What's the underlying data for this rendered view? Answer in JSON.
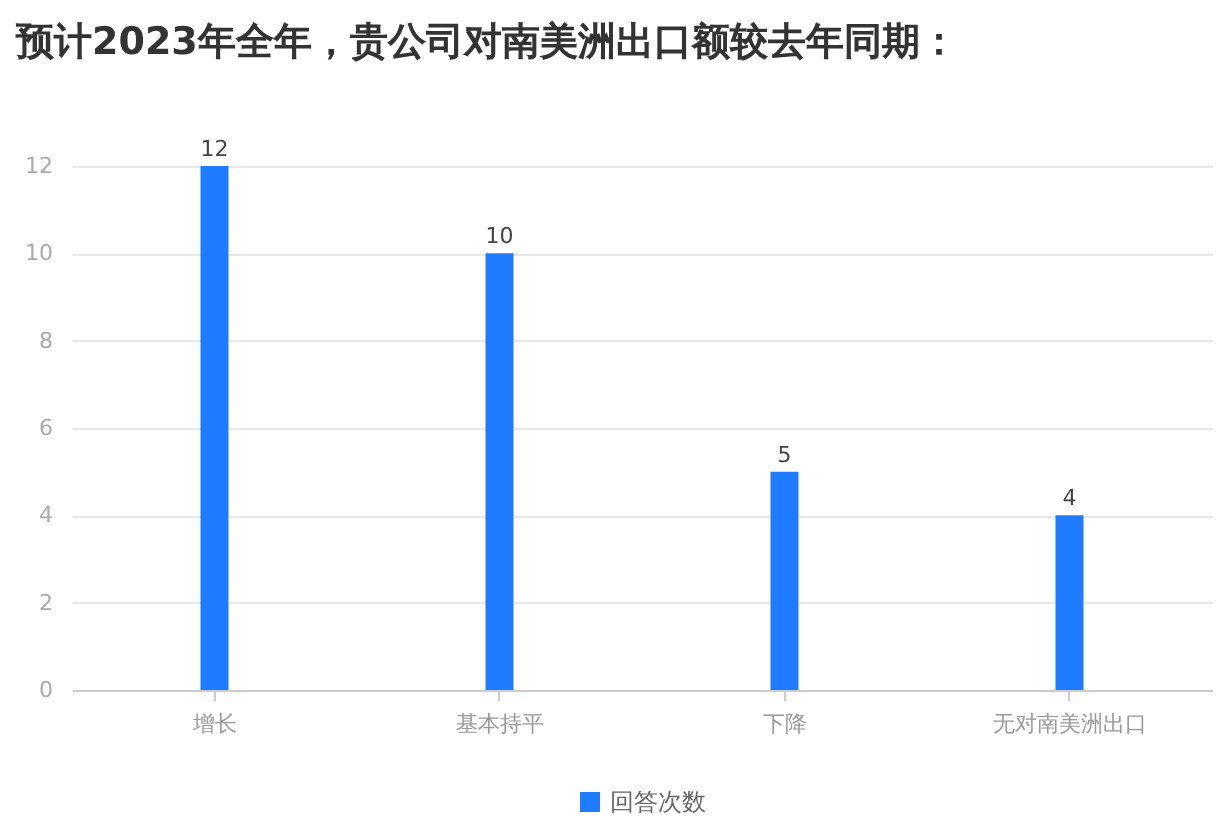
{
  "chart_data": {
    "type": "bar",
    "title": "预计2023年全年，贵公司对南美洲出口额较去年同期：",
    "categories": [
      "增长",
      "基本持平",
      "下降",
      "无对南美洲出口"
    ],
    "series": [
      {
        "name": "回答次数",
        "color": "#1f7bff",
        "values": [
          12,
          10,
          5,
          4
        ]
      }
    ],
    "ylim": [
      0,
      12
    ],
    "yticks": [
      0,
      2,
      4,
      6,
      8,
      10,
      12
    ],
    "grid": "y",
    "legend": "bottom",
    "data_labels": true
  }
}
